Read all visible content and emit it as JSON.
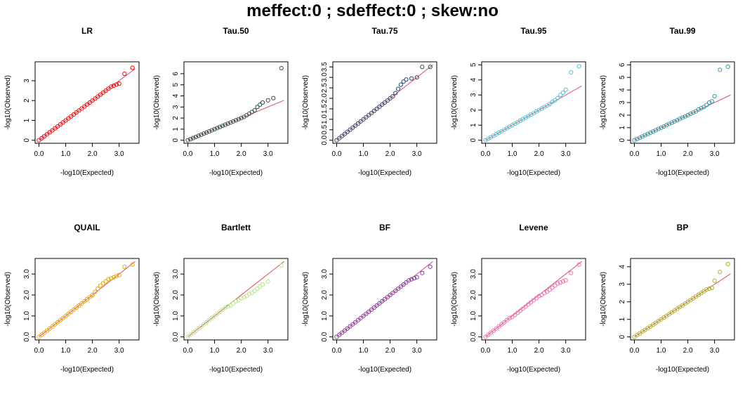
{
  "figure": {
    "title": "meffect:0 ; sdeffect:0 ; skew:no"
  },
  "reference_line_color": "#DF536B",
  "chart_data": [
    {
      "type": "scatter",
      "title": "LR",
      "color": "#FF0000",
      "xlabel": "-log10(Expected)",
      "ylabel": "-log10(Observed)",
      "xlim": [
        0,
        3.6
      ],
      "ylim": [
        0,
        3.8
      ],
      "xticks": [
        "0.0",
        "1.0",
        "2.0",
        "3.0"
      ],
      "yticks": [
        "0",
        "1",
        "2",
        "3"
      ],
      "reference_line": {
        "x": [
          0,
          3.6
        ],
        "y": [
          0,
          3.6
        ]
      },
      "series": [
        {
          "x": [
            0.0,
            0.1,
            0.2,
            0.3,
            0.4,
            0.5,
            0.6,
            0.7,
            0.8,
            0.9,
            1.0,
            1.1,
            1.2,
            1.3,
            1.4,
            1.5,
            1.6,
            1.7,
            1.8,
            1.9,
            2.0,
            2.1,
            2.2,
            2.3,
            2.4,
            2.5,
            2.6,
            2.7,
            2.8,
            2.9,
            3.0,
            3.2,
            3.5
          ],
          "y": [
            0.0,
            0.1,
            0.2,
            0.3,
            0.4,
            0.5,
            0.6,
            0.7,
            0.8,
            0.9,
            1.0,
            1.1,
            1.2,
            1.3,
            1.4,
            1.5,
            1.6,
            1.7,
            1.8,
            1.9,
            2.0,
            2.1,
            2.2,
            2.3,
            2.4,
            2.5,
            2.6,
            2.7,
            2.75,
            2.8,
            2.85,
            3.35,
            3.65
          ]
        }
      ]
    },
    {
      "type": "scatter",
      "title": "Tau.50",
      "color": "#2F4F4F",
      "xlabel": "-log10(Expected)",
      "ylabel": "-log10(Observed)",
      "xlim": [
        0,
        3.6
      ],
      "ylim": [
        0,
        6.8
      ],
      "xticks": [
        "0.0",
        "1.0",
        "2.0",
        "3.0"
      ],
      "yticks": [
        "0",
        "1",
        "2",
        "3",
        "4",
        "5",
        "6"
      ],
      "reference_line": {
        "x": [
          0,
          3.6
        ],
        "y": [
          0,
          3.6
        ]
      },
      "series": [
        {
          "x": [
            0.0,
            0.1,
            0.2,
            0.3,
            0.4,
            0.5,
            0.6,
            0.7,
            0.8,
            0.9,
            1.0,
            1.1,
            1.2,
            1.3,
            1.4,
            1.5,
            1.6,
            1.7,
            1.8,
            1.9,
            2.0,
            2.1,
            2.2,
            2.3,
            2.4,
            2.5,
            2.6,
            2.7,
            2.8,
            3.0,
            3.2,
            3.5
          ],
          "y": [
            0.0,
            0.1,
            0.2,
            0.3,
            0.4,
            0.5,
            0.6,
            0.7,
            0.8,
            0.9,
            1.0,
            1.1,
            1.2,
            1.3,
            1.4,
            1.5,
            1.6,
            1.7,
            1.8,
            1.9,
            2.0,
            2.1,
            2.25,
            2.4,
            2.55,
            2.7,
            3.0,
            3.2,
            3.4,
            3.6,
            3.8,
            6.5
          ]
        }
      ]
    },
    {
      "type": "scatter",
      "title": "Tau.75",
      "color": "#264B73",
      "xlabel": "-log10(Expected)",
      "ylabel": "-log10(Observed)",
      "xlim": [
        0,
        3.6
      ],
      "ylim": [
        0,
        3.6
      ],
      "xticks": [
        "0.0",
        "1.0",
        "2.0",
        "3.0"
      ],
      "yticks": [
        "0.0",
        "0.5",
        "1.0",
        "1.5",
        "2.0",
        "2.5",
        "3.0",
        "3.5"
      ],
      "reference_line": {
        "x": [
          0,
          3.6
        ],
        "y": [
          0,
          3.6
        ]
      },
      "series": [
        {
          "x": [
            0.0,
            0.1,
            0.2,
            0.3,
            0.4,
            0.5,
            0.6,
            0.7,
            0.8,
            0.9,
            1.0,
            1.1,
            1.2,
            1.3,
            1.4,
            1.5,
            1.6,
            1.7,
            1.8,
            1.9,
            2.0,
            2.1,
            2.2,
            2.3,
            2.4,
            2.5,
            2.6,
            2.8,
            3.0,
            3.2,
            3.5
          ],
          "y": [
            0.0,
            0.1,
            0.2,
            0.3,
            0.4,
            0.5,
            0.6,
            0.7,
            0.8,
            0.9,
            1.0,
            1.1,
            1.2,
            1.3,
            1.4,
            1.5,
            1.6,
            1.7,
            1.8,
            1.9,
            2.0,
            2.1,
            2.25,
            2.45,
            2.65,
            2.8,
            2.9,
            2.95,
            3.0,
            3.5,
            3.5
          ]
        }
      ]
    },
    {
      "type": "scatter",
      "title": "Tau.95",
      "color": "#4FC3D7",
      "xlabel": "-log10(Expected)",
      "ylabel": "-log10(Observed)",
      "xlim": [
        0,
        3.6
      ],
      "ylim": [
        0,
        5.0
      ],
      "xticks": [
        "0.0",
        "1.0",
        "2.0",
        "3.0"
      ],
      "yticks": [
        "0",
        "1",
        "2",
        "3",
        "4",
        "5"
      ],
      "reference_line": {
        "x": [
          0,
          3.6
        ],
        "y": [
          0,
          3.6
        ]
      },
      "series": [
        {
          "x": [
            0.0,
            0.1,
            0.2,
            0.3,
            0.4,
            0.5,
            0.6,
            0.7,
            0.8,
            0.9,
            1.0,
            1.1,
            1.2,
            1.3,
            1.4,
            1.5,
            1.6,
            1.7,
            1.8,
            1.9,
            2.0,
            2.1,
            2.2,
            2.3,
            2.4,
            2.5,
            2.6,
            2.7,
            2.8,
            2.9,
            3.0,
            3.2,
            3.5
          ],
          "y": [
            0.0,
            0.1,
            0.2,
            0.3,
            0.4,
            0.5,
            0.6,
            0.7,
            0.8,
            0.9,
            1.0,
            1.1,
            1.2,
            1.3,
            1.4,
            1.5,
            1.6,
            1.7,
            1.8,
            1.9,
            2.0,
            2.1,
            2.2,
            2.3,
            2.4,
            2.55,
            2.65,
            2.8,
            3.0,
            3.15,
            3.35,
            4.5,
            4.9
          ]
        }
      ]
    },
    {
      "type": "scatter",
      "title": "Tau.99",
      "color": "#2E9DA3",
      "xlabel": "-log10(Expected)",
      "ylabel": "-log10(Observed)",
      "xlim": [
        0,
        3.6
      ],
      "ylim": [
        0,
        6.0
      ],
      "xticks": [
        "0.0",
        "1.0",
        "2.0",
        "3.0"
      ],
      "yticks": [
        "0",
        "1",
        "2",
        "3",
        "4",
        "5",
        "6"
      ],
      "reference_line": {
        "x": [
          0,
          3.6
        ],
        "y": [
          0,
          3.6
        ]
      },
      "series": [
        {
          "x": [
            0.0,
            0.1,
            0.2,
            0.3,
            0.4,
            0.5,
            0.6,
            0.7,
            0.8,
            0.9,
            1.0,
            1.1,
            1.2,
            1.3,
            1.4,
            1.5,
            1.6,
            1.7,
            1.8,
            1.9,
            2.0,
            2.1,
            2.2,
            2.3,
            2.4,
            2.5,
            2.6,
            2.7,
            2.8,
            2.9,
            3.0,
            3.2,
            3.5
          ],
          "y": [
            0.0,
            0.1,
            0.2,
            0.3,
            0.4,
            0.5,
            0.6,
            0.7,
            0.8,
            0.9,
            1.0,
            1.1,
            1.2,
            1.3,
            1.4,
            1.5,
            1.6,
            1.7,
            1.8,
            1.9,
            2.0,
            2.1,
            2.2,
            2.3,
            2.45,
            2.55,
            2.65,
            2.8,
            3.0,
            3.1,
            3.5,
            5.6,
            5.85
          ]
        }
      ]
    },
    {
      "type": "scatter",
      "title": "QUAIL",
      "color": "#E8A800",
      "xlabel": "-log10(Expected)",
      "ylabel": "-log10(Observed)",
      "xlim": [
        0,
        3.6
      ],
      "ylim": [
        0,
        3.6
      ],
      "xticks": [
        "0.0",
        "1.0",
        "2.0",
        "3.0"
      ],
      "yticks": [
        "0.0",
        "1.0",
        "2.0",
        "3.0"
      ],
      "reference_line": {
        "x": [
          0,
          3.6
        ],
        "y": [
          0,
          3.6
        ]
      },
      "series": [
        {
          "x": [
            0.0,
            0.1,
            0.2,
            0.3,
            0.4,
            0.5,
            0.6,
            0.7,
            0.8,
            0.9,
            1.0,
            1.1,
            1.2,
            1.3,
            1.4,
            1.5,
            1.6,
            1.7,
            1.8,
            1.9,
            2.0,
            2.1,
            2.2,
            2.3,
            2.4,
            2.5,
            2.6,
            2.7,
            2.8,
            2.9,
            3.0,
            3.2,
            3.5
          ],
          "y": [
            0.0,
            0.1,
            0.2,
            0.3,
            0.4,
            0.5,
            0.6,
            0.7,
            0.8,
            0.9,
            1.0,
            1.1,
            1.2,
            1.3,
            1.4,
            1.5,
            1.6,
            1.7,
            1.8,
            1.9,
            2.0,
            2.15,
            2.3,
            2.45,
            2.55,
            2.65,
            2.75,
            2.8,
            2.85,
            2.9,
            2.95,
            3.35,
            3.45
          ]
        }
      ]
    },
    {
      "type": "scatter",
      "title": "Bartlett",
      "color": "#B7E48A",
      "xlabel": "-log10(Expected)",
      "ylabel": "-log10(Observed)",
      "xlim": [
        0,
        3.6
      ],
      "ylim": [
        0,
        3.6
      ],
      "xticks": [
        "0.0",
        "1.0",
        "2.0",
        "3.0"
      ],
      "yticks": [
        "0.0",
        "1.0",
        "2.0",
        "3.0"
      ],
      "reference_line": {
        "x": [
          0,
          3.6
        ],
        "y": [
          0,
          3.6
        ]
      },
      "series": [
        {
          "x": [
            0.0,
            0.1,
            0.2,
            0.3,
            0.4,
            0.5,
            0.6,
            0.7,
            0.8,
            0.9,
            1.0,
            1.1,
            1.2,
            1.3,
            1.4,
            1.5,
            1.6,
            1.7,
            1.8,
            1.9,
            2.0,
            2.1,
            2.2,
            2.3,
            2.4,
            2.5,
            2.6,
            2.7,
            2.8,
            3.0,
            3.5
          ],
          "y": [
            0.0,
            0.1,
            0.2,
            0.3,
            0.4,
            0.5,
            0.6,
            0.7,
            0.8,
            0.9,
            1.0,
            1.1,
            1.2,
            1.3,
            1.4,
            1.45,
            1.5,
            1.6,
            1.7,
            1.75,
            1.85,
            1.9,
            1.95,
            2.05,
            2.1,
            2.2,
            2.3,
            2.4,
            2.5,
            2.65,
            3.4
          ]
        }
      ]
    },
    {
      "type": "scatter",
      "title": "BF",
      "color": "#7E3FAE",
      "xlabel": "-log10(Expected)",
      "ylabel": "-log10(Observed)",
      "xlim": [
        0,
        3.6
      ],
      "ylim": [
        0,
        3.6
      ],
      "xticks": [
        "0.0",
        "1.0",
        "2.0",
        "3.0"
      ],
      "yticks": [
        "0.0",
        "1.0",
        "2.0",
        "3.0"
      ],
      "reference_line": {
        "x": [
          0,
          3.6
        ],
        "y": [
          0,
          3.6
        ]
      },
      "series": [
        {
          "x": [
            0.0,
            0.1,
            0.2,
            0.3,
            0.4,
            0.5,
            0.6,
            0.7,
            0.8,
            0.9,
            1.0,
            1.1,
            1.2,
            1.3,
            1.4,
            1.5,
            1.6,
            1.7,
            1.8,
            1.9,
            2.0,
            2.1,
            2.2,
            2.3,
            2.4,
            2.5,
            2.6,
            2.7,
            2.8,
            2.9,
            3.0,
            3.2,
            3.5
          ],
          "y": [
            0.0,
            0.1,
            0.2,
            0.3,
            0.4,
            0.5,
            0.6,
            0.7,
            0.8,
            0.9,
            1.0,
            1.1,
            1.2,
            1.3,
            1.4,
            1.5,
            1.6,
            1.7,
            1.8,
            1.9,
            2.0,
            2.1,
            2.2,
            2.3,
            2.4,
            2.5,
            2.6,
            2.7,
            2.75,
            2.8,
            2.85,
            3.05,
            3.35
          ]
        }
      ]
    },
    {
      "type": "scatter",
      "title": "Levene",
      "color": "#EE6FB8",
      "xlabel": "-log10(Expected)",
      "ylabel": "-log10(Observed)",
      "xlim": [
        0,
        3.6
      ],
      "ylim": [
        0,
        3.6
      ],
      "xticks": [
        "0.0",
        "1.0",
        "2.0",
        "3.0"
      ],
      "yticks": [
        "0.0",
        "1.0",
        "2.0",
        "3.0"
      ],
      "reference_line": {
        "x": [
          0,
          3.6
        ],
        "y": [
          0,
          3.6
        ]
      },
      "series": [
        {
          "x": [
            0.0,
            0.1,
            0.2,
            0.3,
            0.4,
            0.5,
            0.6,
            0.7,
            0.8,
            0.9,
            1.0,
            1.1,
            1.2,
            1.3,
            1.4,
            1.5,
            1.6,
            1.7,
            1.8,
            1.9,
            2.0,
            2.1,
            2.2,
            2.3,
            2.4,
            2.5,
            2.6,
            2.7,
            2.8,
            2.9,
            3.0,
            3.2,
            3.5
          ],
          "y": [
            0.0,
            0.1,
            0.2,
            0.3,
            0.4,
            0.5,
            0.6,
            0.7,
            0.8,
            0.9,
            0.95,
            1.05,
            1.15,
            1.25,
            1.35,
            1.45,
            1.55,
            1.65,
            1.75,
            1.85,
            1.95,
            2.0,
            2.1,
            2.15,
            2.25,
            2.35,
            2.45,
            2.55,
            2.6,
            2.65,
            2.7,
            3.05,
            3.45
          ]
        }
      ]
    },
    {
      "type": "scatter",
      "title": "BP",
      "color": "#A8B31A",
      "xlabel": "-log10(Expected)",
      "ylabel": "-log10(Observed)",
      "xlim": [
        0,
        3.6
      ],
      "ylim": [
        0,
        4.3
      ],
      "xticks": [
        "0.0",
        "1.0",
        "2.0",
        "3.0"
      ],
      "yticks": [
        "0",
        "1",
        "2",
        "3",
        "4"
      ],
      "reference_line": {
        "x": [
          0,
          3.6
        ],
        "y": [
          0,
          3.6
        ]
      },
      "series": [
        {
          "x": [
            0.0,
            0.1,
            0.2,
            0.3,
            0.4,
            0.5,
            0.6,
            0.7,
            0.8,
            0.9,
            1.0,
            1.1,
            1.2,
            1.3,
            1.4,
            1.5,
            1.6,
            1.7,
            1.8,
            1.9,
            2.0,
            2.1,
            2.2,
            2.3,
            2.4,
            2.5,
            2.6,
            2.7,
            2.8,
            2.9,
            3.0,
            3.2,
            3.5
          ],
          "y": [
            0.0,
            0.1,
            0.2,
            0.3,
            0.4,
            0.5,
            0.6,
            0.7,
            0.8,
            0.9,
            1.0,
            1.1,
            1.2,
            1.3,
            1.4,
            1.5,
            1.6,
            1.7,
            1.8,
            1.9,
            2.0,
            2.1,
            2.2,
            2.3,
            2.4,
            2.5,
            2.6,
            2.7,
            2.75,
            2.8,
            3.2,
            3.7,
            4.15
          ]
        }
      ]
    }
  ]
}
